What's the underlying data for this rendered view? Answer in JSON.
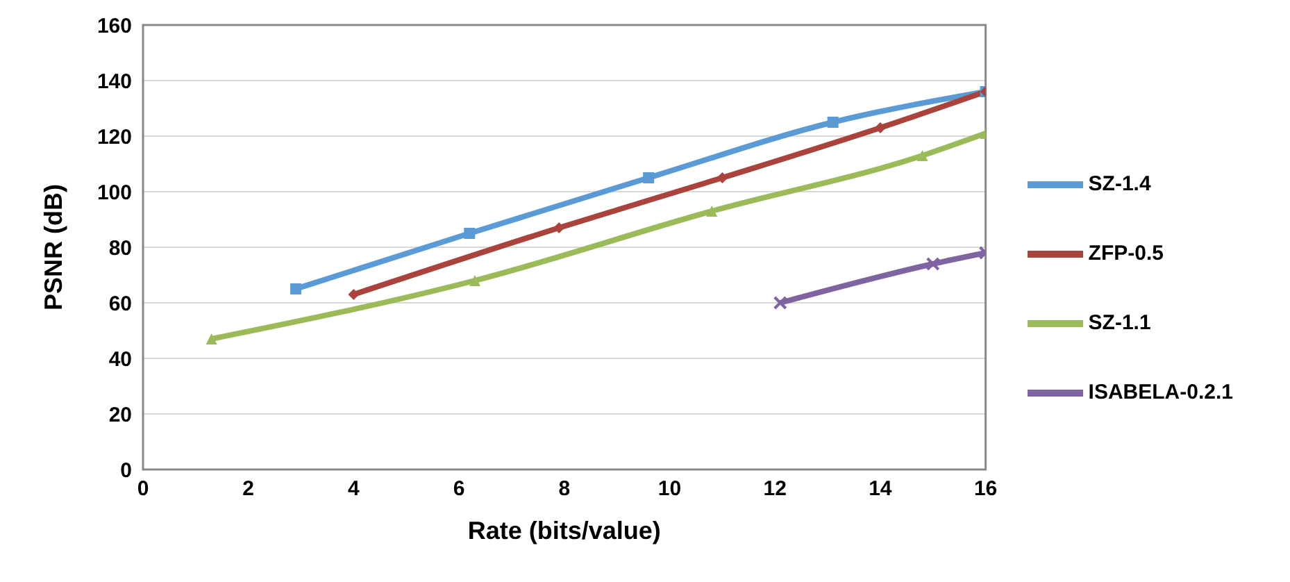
{
  "chart_data": {
    "type": "line",
    "xlabel": "Rate (bits/value)",
    "ylabel": "PSNR (dB)",
    "xlim": [
      0,
      16
    ],
    "xticks": [
      0,
      2,
      4,
      6,
      8,
      10,
      12,
      14,
      16
    ],
    "ylim": [
      0,
      160
    ],
    "yticks": [
      0,
      20,
      40,
      60,
      80,
      100,
      120,
      140,
      160
    ],
    "grid": "y",
    "legend": "right",
    "series": [
      {
        "name": "SZ-1.4",
        "color": "#5b9bd5",
        "marker": "square",
        "x": [
          2.9,
          6.2,
          9.6,
          13.1,
          16
        ],
        "values": [
          65,
          85,
          105,
          125,
          136
        ]
      },
      {
        "name": "ZFP-0.5",
        "color": "#a9433c",
        "marker": "diamond",
        "x": [
          4,
          7.9,
          11,
          14,
          16
        ],
        "values": [
          63,
          87,
          105,
          123,
          136
        ]
      },
      {
        "name": "SZ-1.1",
        "color": "#9bbb59",
        "marker": "triangle",
        "x": [
          1.3,
          6.3,
          10.8,
          14.8,
          16
        ],
        "values": [
          47,
          68,
          93,
          113,
          121
        ]
      },
      {
        "name": "ISABELA-0.2.1",
        "color": "#8064a2",
        "marker": "cross",
        "x": [
          12.1,
          15,
          16
        ],
        "values": [
          60,
          74,
          78
        ]
      }
    ]
  }
}
